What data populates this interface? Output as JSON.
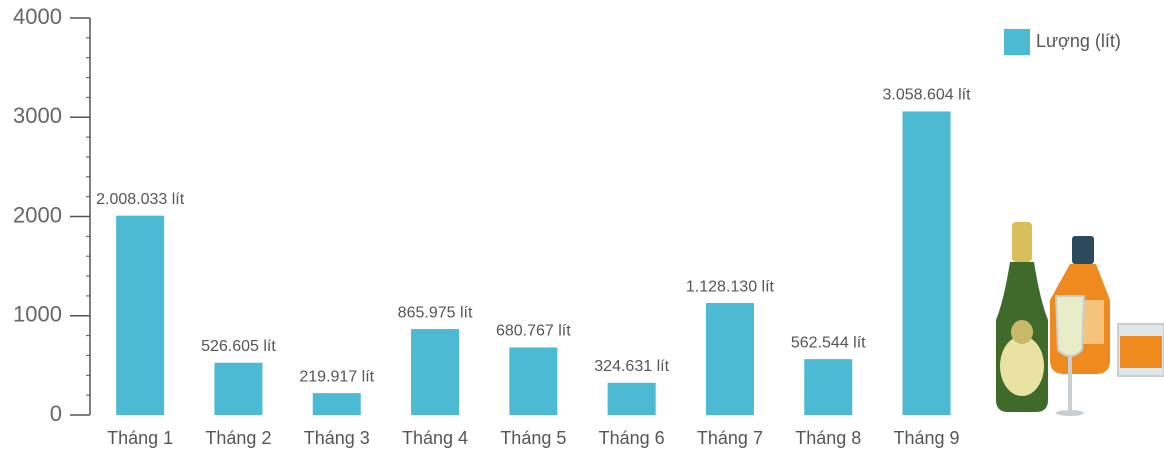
{
  "chart_data": {
    "type": "bar",
    "categories": [
      "Tháng 1",
      "Tháng 2",
      "Tháng 3",
      "Tháng 4",
      "Tháng 5",
      "Tháng 6",
      "Tháng 7",
      "Tháng 8",
      "Tháng 9"
    ],
    "series": [
      {
        "name": "Lượng (lít)",
        "color": "#4bbad2",
        "values": [
          2008.033,
          526.605,
          219.917,
          865.975,
          680.767,
          324.631,
          1128.13,
          562.544,
          3058.604
        ],
        "value_labels": [
          "2.008.033 lít",
          "526.605 lít",
          "219.917 lít",
          "865.975 lít",
          "680.767 lít",
          "324.631 lít",
          "1.128.130 lít",
          "562.544 lít",
          "3.058.604 lít"
        ]
      }
    ],
    "ylim": [
      0,
      4000
    ],
    "yticks": [
      0,
      1000,
      2000,
      3000,
      4000
    ],
    "minor_yticks": [
      200,
      400,
      600,
      800,
      1200,
      1400,
      1600,
      1800,
      2200,
      2400,
      2600,
      2800,
      3200,
      3400,
      3600,
      3800
    ],
    "legend": "top-right"
  }
}
